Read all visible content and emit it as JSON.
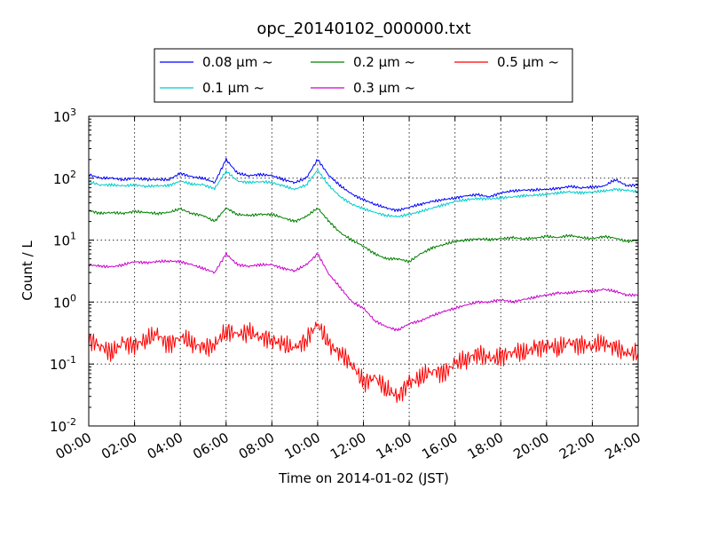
{
  "chart_data": {
    "type": "line",
    "title": "opc_20140102_000000.txt",
    "xlabel": "Time on 2014-01-02 (JST)",
    "ylabel": "Count / L",
    "y_scale": "log",
    "ylim": [
      0.01,
      1000
    ],
    "xlim": [
      "00:00",
      "24:00"
    ],
    "x_unit": "hour",
    "grid": true,
    "legend_position": "top-center",
    "x_ticks": [
      "00:00",
      "02:00",
      "04:00",
      "06:00",
      "08:00",
      "10:00",
      "12:00",
      "14:00",
      "16:00",
      "18:00",
      "20:00",
      "22:00",
      "24:00"
    ],
    "y_ticks": [
      {
        "base": "10",
        "exp": "-2"
      },
      {
        "base": "10",
        "exp": "-1"
      },
      {
        "base": "10",
        "exp": "0"
      },
      {
        "base": "10",
        "exp": "1"
      },
      {
        "base": "10",
        "exp": "2"
      },
      {
        "base": "10",
        "exp": "3"
      }
    ],
    "x": [
      0,
      0.5,
      1,
      1.5,
      2,
      2.5,
      3,
      3.5,
      4,
      4.5,
      5,
      5.5,
      6,
      6.5,
      7,
      7.5,
      8,
      8.5,
      9,
      9.5,
      10,
      10.5,
      11,
      11.5,
      12,
      12.5,
      13,
      13.5,
      14,
      14.5,
      15,
      15.5,
      16,
      16.5,
      17,
      17.5,
      18,
      18.5,
      19,
      19.5,
      20,
      20.5,
      21,
      21.5,
      22,
      22.5,
      23,
      23.5,
      24
    ],
    "series": [
      {
        "name": "0.08 μm ~",
        "color": "#0000ff",
        "values": [
          115,
          100,
          100,
          95,
          100,
          95,
          95,
          95,
          120,
          105,
          100,
          85,
          200,
          120,
          110,
          115,
          110,
          95,
          85,
          100,
          200,
          110,
          75,
          55,
          45,
          38,
          33,
          30,
          34,
          38,
          42,
          45,
          48,
          52,
          54,
          50,
          58,
          62,
          64,
          65,
          66,
          68,
          74,
          70,
          72,
          74,
          95,
          76,
          78
        ]
      },
      {
        "name": "0.1 μm ~",
        "color": "#00cccc",
        "values": [
          88,
          78,
          78,
          75,
          78,
          74,
          75,
          76,
          90,
          80,
          78,
          68,
          130,
          90,
          85,
          88,
          85,
          75,
          66,
          78,
          135,
          75,
          50,
          38,
          32,
          28,
          25,
          24,
          26,
          29,
          33,
          37,
          42,
          45,
          47,
          46,
          48,
          50,
          52,
          53,
          55,
          58,
          60,
          58,
          60,
          62,
          66,
          64,
          60
        ]
      },
      {
        "name": "0.2 μm ~",
        "color": "#008000",
        "values": [
          30,
          27,
          28,
          27,
          29,
          28,
          27,
          28,
          32,
          27,
          25,
          20,
          33,
          26,
          25,
          26,
          26,
          23,
          20,
          24,
          33,
          20,
          13,
          10,
          8,
          6,
          5,
          5,
          4.5,
          6,
          7.5,
          8.5,
          9.5,
          10,
          10.5,
          10.2,
          10.5,
          11,
          10.5,
          10.8,
          11.5,
          11,
          12,
          11,
          10.5,
          11.5,
          10.8,
          9.5,
          10
        ]
      },
      {
        "name": "0.3 μm ~",
        "color": "#cc00cc",
        "values": [
          4,
          3.8,
          3.7,
          4,
          4.5,
          4.3,
          4.5,
          4.6,
          4.5,
          4,
          3.5,
          3,
          6,
          4,
          3.8,
          4,
          4,
          3.5,
          3.2,
          4,
          6,
          2.8,
          1.7,
          1,
          0.8,
          0.5,
          0.4,
          0.35,
          0.45,
          0.5,
          0.6,
          0.7,
          0.8,
          0.9,
          1,
          1,
          1.1,
          1,
          1.1,
          1.2,
          1.3,
          1.4,
          1.4,
          1.5,
          1.5,
          1.6,
          1.5,
          1.3,
          1.3
        ]
      },
      {
        "name": "0.5 μm ~",
        "color": "#ff0000",
        "values": [
          0.25,
          0.2,
          0.15,
          0.22,
          0.2,
          0.25,
          0.3,
          0.2,
          0.28,
          0.22,
          0.18,
          0.2,
          0.35,
          0.3,
          0.32,
          0.28,
          0.25,
          0.2,
          0.18,
          0.25,
          0.45,
          0.2,
          0.15,
          0.1,
          0.05,
          0.06,
          0.04,
          0.03,
          0.05,
          0.06,
          0.08,
          0.07,
          0.1,
          0.12,
          0.15,
          0.12,
          0.13,
          0.16,
          0.15,
          0.18,
          0.2,
          0.18,
          0.22,
          0.2,
          0.2,
          0.22,
          0.18,
          0.15,
          0.15
        ]
      }
    ]
  }
}
